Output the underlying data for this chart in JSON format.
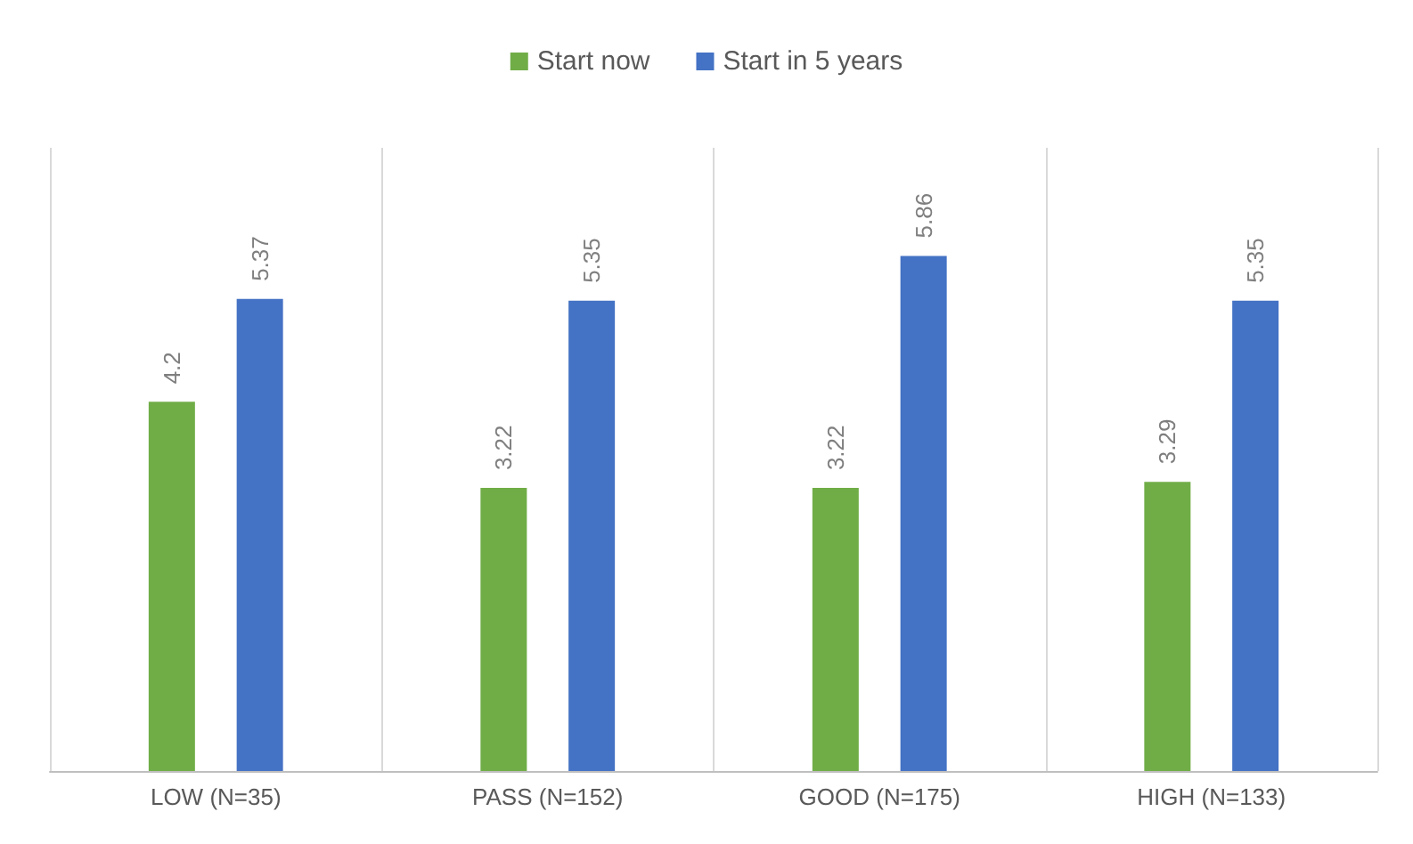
{
  "chart_data": {
    "type": "bar",
    "categories": [
      "LOW (N=35)",
      "PASS (N=152)",
      "GOOD (N=175)",
      "HIGH (N=133)"
    ],
    "series": [
      {
        "name": "Start now",
        "color": "#70ad47",
        "values": [
          4.2,
          3.22,
          3.22,
          3.29
        ]
      },
      {
        "name": "Start in 5 years",
        "color": "#4472c4",
        "values": [
          5.37,
          5.35,
          5.86,
          5.35
        ]
      }
    ],
    "data_labels": true,
    "grid": "x",
    "legend": "top"
  }
}
